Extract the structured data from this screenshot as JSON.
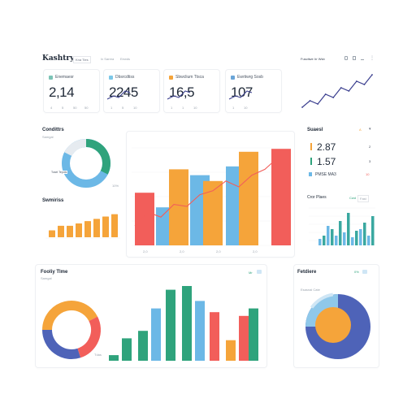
{
  "header": {
    "title": "Kashtry",
    "tabs": [
      "Kna Ties",
      "Ix Sarrea",
      "Eewds"
    ],
    "right_label": "Fusctiwe Irr Wsb",
    "right_icons": [
      "filter-icon",
      "calendar-icon",
      "download-icon",
      "more-icon"
    ]
  },
  "kpis": [
    {
      "label": "Enemaesr",
      "value": "2,14",
      "color": "#7cc4b6",
      "axis": [
        "4",
        "5",
        "50",
        "50"
      ]
    },
    {
      "label": "Dbsrcdtiss",
      "value": "2245",
      "color": "#7cc8e8",
      "axis": [
        "1",
        "5",
        "10"
      ]
    },
    {
      "label": "Sbwclium Ttsca",
      "value": "16,5",
      "color": "#f5a43a",
      "axis": [
        "1",
        "1",
        "10"
      ]
    },
    {
      "label": "Ewrtiwrg Sosb",
      "value": "107",
      "color": "#6aa5d8",
      "axis": [
        "1",
        "10"
      ]
    }
  ],
  "left_donut": {
    "title": "Condittrs",
    "subtitle": "Samgal",
    "legend": "Tosel Tepots",
    "footer": "10%"
  },
  "small_bars": {
    "title": "Swmiriss",
    "axis": [
      "1",
      "1",
      "1"
    ]
  },
  "main_chart": {
    "axis": [
      "2,0",
      "2,0",
      "2,0",
      "2,0"
    ]
  },
  "right_stats": {
    "title": "Suaesl",
    "chip": "A",
    "rows": [
      {
        "value": "2.87",
        "color": "#f5a43a",
        "right": "2"
      },
      {
        "value": "1.57",
        "color": "#2fa37c",
        "right": "3"
      }
    ],
    "footer": "PMSE MA3",
    "footer_right": "10"
  },
  "right_bars": {
    "title": "Cror Plaes",
    "chips": [
      "Cwd",
      "Fast"
    ]
  },
  "bottom_left": {
    "title": "Fooliy Tlme",
    "subtitle": "Samgal",
    "chip": "Mr",
    "legend": "Tdas"
  },
  "bottom_right": {
    "title": "Fetdiere",
    "chip": "0%",
    "legend": "Esasnai Cate"
  },
  "chart_data": [
    {
      "type": "bar",
      "title": "",
      "series": [
        {
          "values": [
            18,
            13,
            26,
            24,
            22,
            27,
            32,
            33
          ]
        },
        {
          "values": [
            9,
            10,
            27,
            13,
            27,
            18,
            13,
            29
          ]
        }
      ],
      "colors": [
        "#f5a43a",
        "#6cb8e6",
        "#f25e5a"
      ]
    },
    {
      "type": "line",
      "values": [
        3,
        5,
        4,
        7,
        6,
        9,
        8,
        11,
        10,
        13
      ]
    },
    {
      "type": "bar",
      "values": [
        3,
        5,
        5,
        6,
        7,
        8,
        9,
        10
      ],
      "ylim": [
        0,
        12
      ]
    },
    {
      "type": "bar",
      "values": [
        4,
        6,
        12,
        10,
        6,
        15,
        8,
        20,
        5,
        9,
        10,
        14,
        6,
        18
      ],
      "ylim": [
        0,
        20
      ]
    },
    {
      "type": "pie",
      "values": [
        45,
        30,
        25
      ]
    },
    {
      "type": "pie",
      "values": [
        60,
        25,
        15
      ]
    }
  ]
}
